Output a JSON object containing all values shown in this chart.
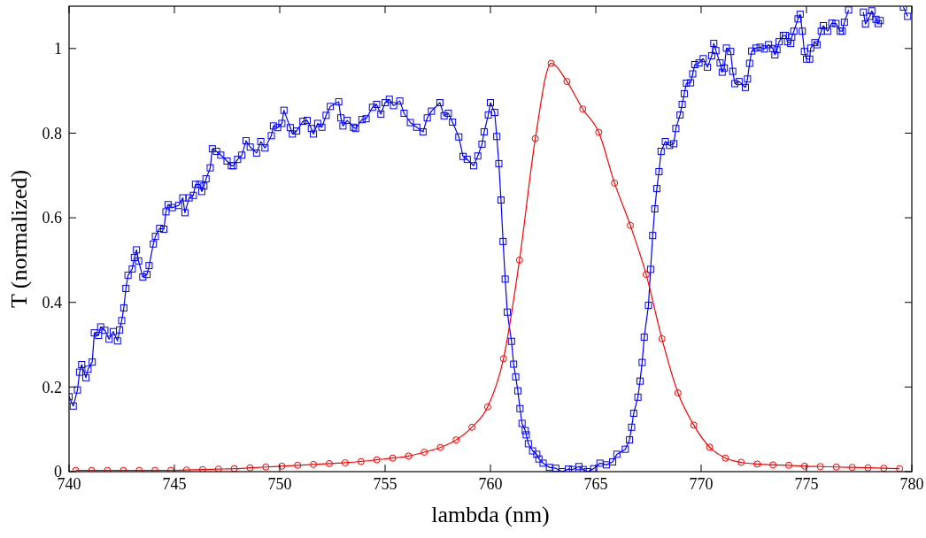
{
  "chart_data": {
    "type": "line",
    "xlabel": "lambda (nm)",
    "ylabel": "T (normalized)",
    "xlim": [
      740,
      780
    ],
    "xticks": [
      740,
      745,
      750,
      755,
      760,
      765,
      770,
      775,
      780
    ],
    "ylim": [
      0,
      1.1
    ],
    "yticks": [
      0,
      0.2,
      0.4,
      0.6,
      0.8,
      1
    ],
    "grid": false,
    "line_style": "solid",
    "series": [
      {
        "color": "#0000ff",
        "marker": "square",
        "x": [
          740.0,
          740.2,
          740.4,
          740.5,
          740.6,
          740.8,
          740.9,
          741.1,
          741.2,
          741.4,
          741.5,
          741.7,
          741.9,
          742.1,
          742.3,
          742.4,
          742.5,
          742.6,
          742.7,
          742.8,
          743.0,
          743.1,
          743.2,
          743.3,
          743.5,
          743.7,
          743.8,
          744.0,
          744.1,
          744.3,
          744.5,
          744.6,
          744.7,
          744.9,
          745.2,
          745.4,
          745.5,
          745.7,
          745.9,
          746.0,
          746.2,
          746.3,
          746.4,
          746.5,
          746.7,
          746.8,
          747.0,
          747.2,
          747.5,
          747.7,
          747.8,
          748.0,
          748.2,
          748.4,
          748.6,
          748.9,
          749.1,
          749.3,
          749.6,
          749.7,
          749.9,
          750.1,
          750.2,
          750.5,
          750.6,
          750.8,
          751.1,
          751.3,
          751.5,
          751.6,
          751.8,
          752.0,
          752.2,
          752.4,
          752.8,
          752.9,
          753.0,
          753.2,
          753.5,
          753.6,
          753.9,
          754.1,
          754.4,
          754.6,
          754.8,
          755.0,
          755.2,
          755.4,
          755.7,
          755.9,
          756.2,
          756.5,
          756.8,
          757.0,
          757.2,
          757.6,
          757.8,
          758.0,
          758.2,
          758.5,
          758.7,
          758.9,
          759.2,
          759.4,
          759.6,
          759.7,
          759.9,
          760.0,
          760.2,
          760.3,
          760.4,
          760.5,
          760.6,
          760.7,
          760.8,
          761.0,
          761.1,
          761.2,
          761.3,
          761.4,
          761.5,
          761.65,
          761.7,
          761.8,
          762.0,
          762.2,
          762.3,
          762.5,
          762.8,
          763.1,
          763.4,
          763.7,
          763.9,
          764.2,
          764.4,
          764.6,
          764.9,
          765.2,
          765.5,
          765.8,
          766.0,
          766.4,
          766.6,
          766.7,
          766.8,
          767.0,
          767.1,
          767.2,
          767.3,
          767.5,
          767.6,
          767.7,
          767.8,
          767.9,
          768.0,
          768.1,
          768.3,
          768.5,
          768.7,
          768.8,
          769.0,
          769.1,
          769.2,
          769.3,
          769.5,
          769.6,
          769.7,
          769.9,
          770.1,
          770.3,
          770.5,
          770.6,
          770.7,
          770.9,
          771.0,
          771.1,
          771.2,
          771.4,
          771.5,
          771.6,
          771.8,
          772.1,
          772.2,
          772.3,
          772.4,
          772.6,
          772.8,
          773.0,
          773.2,
          773.4,
          773.5,
          773.6,
          773.7,
          773.9,
          774.0,
          774.1,
          774.25,
          774.3,
          774.4,
          774.6,
          774.7,
          774.8,
          774.9,
          775.0,
          775.15,
          775.2,
          775.4,
          775.5,
          775.7,
          775.8,
          776.0,
          776.2,
          776.4,
          776.6,
          776.7,
          776.8,
          777.0,
          777.3,
          777.7,
          777.8,
          778.0,
          778.1,
          778.3,
          778.4,
          778.5,
          779.0,
          779.6,
          779.8
        ],
        "values": [
          0.177,
          0.155,
          0.193,
          0.235,
          0.253,
          0.222,
          0.242,
          0.259,
          0.328,
          0.322,
          0.342,
          0.334,
          0.313,
          0.331,
          0.309,
          0.335,
          0.357,
          0.387,
          0.433,
          0.464,
          0.479,
          0.506,
          0.524,
          0.498,
          0.46,
          0.466,
          0.487,
          0.538,
          0.556,
          0.575,
          0.573,
          0.614,
          0.631,
          0.624,
          0.629,
          0.647,
          0.612,
          0.647,
          0.653,
          0.679,
          0.679,
          0.662,
          0.675,
          0.692,
          0.718,
          0.763,
          0.757,
          0.748,
          0.734,
          0.723,
          0.723,
          0.738,
          0.748,
          0.782,
          0.767,
          0.753,
          0.78,
          0.765,
          0.794,
          0.817,
          0.813,
          0.823,
          0.854,
          0.813,
          0.798,
          0.805,
          0.828,
          0.83,
          0.811,
          0.798,
          0.823,
          0.814,
          0.842,
          0.863,
          0.874,
          0.836,
          0.817,
          0.83,
          0.814,
          0.811,
          0.832,
          0.834,
          0.861,
          0.868,
          0.845,
          0.872,
          0.88,
          0.865,
          0.876,
          0.847,
          0.825,
          0.814,
          0.803,
          0.836,
          0.852,
          0.872,
          0.841,
          0.847,
          0.826,
          0.791,
          0.745,
          0.738,
          0.723,
          0.746,
          0.774,
          0.803,
          0.843,
          0.872,
          0.849,
          0.792,
          0.728,
          0.642,
          0.544,
          0.455,
          0.377,
          0.308,
          0.254,
          0.224,
          0.191,
          0.149,
          0.114,
          0.097,
          0.087,
          0.066,
          0.049,
          0.041,
          0.03,
          0.02,
          0.01,
          0.008,
          0.0,
          0.006,
          0.005,
          0.012,
          0.005,
          0.0,
          0.007,
          0.02,
          0.016,
          0.023,
          0.041,
          0.053,
          0.075,
          0.105,
          0.138,
          0.176,
          0.214,
          0.258,
          0.318,
          0.393,
          0.478,
          0.558,
          0.621,
          0.669,
          0.709,
          0.757,
          0.78,
          0.771,
          0.775,
          0.811,
          0.843,
          0.868,
          0.893,
          0.918,
          0.919,
          0.94,
          0.962,
          0.966,
          0.976,
          0.956,
          0.983,
          1.012,
          0.995,
          0.966,
          0.944,
          0.954,
          1.001,
          0.993,
          0.946,
          0.917,
          0.922,
          0.908,
          0.928,
          0.965,
          0.994,
          1.001,
          1.003,
          0.999,
          1.009,
          1.0,
          0.985,
          0.997,
          1.016,
          1.031,
          1.031,
          1.016,
          1.012,
          1.027,
          1.041,
          1.07,
          1.081,
          1.041,
          0.993,
          0.975,
          0.975,
          1.001,
          1.014,
          1.009,
          1.041,
          1.054,
          1.041,
          1.06,
          1.059,
          1.041,
          1.041,
          1.062,
          1.091,
          null,
          1.086,
          1.058,
          1.076,
          1.089,
          1.069,
          1.059,
          1.066,
          null,
          1.098,
          1.076
        ]
      },
      {
        "color": "#ff0000",
        "marker": "circle",
        "x": [
          740.32,
          741.07,
          741.82,
          742.58,
          743.33,
          744.08,
          744.83,
          745.58,
          746.34,
          747.09,
          747.84,
          748.59,
          749.34,
          750.1,
          750.85,
          751.6,
          752.35,
          753.1,
          753.86,
          754.61,
          755.36,
          756.11,
          756.86,
          757.62,
          758.37,
          759.12,
          759.87,
          760.62,
          761.38,
          762.13,
          762.88,
          763.63,
          764.38,
          765.14,
          765.89,
          766.64,
          767.39,
          768.14,
          768.9,
          769.65,
          770.4,
          771.15,
          771.9,
          772.66,
          773.41,
          774.16,
          774.91,
          775.66,
          776.42,
          777.17,
          777.92,
          778.67,
          779.42
        ],
        "values": [
          0.003,
          0.003,
          0.003,
          0.003,
          0.003,
          0.003,
          0.003,
          0.004,
          0.005,
          0.006,
          0.007,
          0.009,
          0.011,
          0.013,
          0.015,
          0.017,
          0.019,
          0.021,
          0.024,
          0.028,
          0.032,
          0.037,
          0.046,
          0.057,
          0.075,
          0.105,
          0.153,
          0.267,
          0.5,
          0.787,
          0.965,
          0.922,
          0.857,
          0.802,
          0.682,
          0.582,
          0.466,
          0.314,
          0.186,
          0.11,
          0.058,
          0.032,
          0.022,
          0.018,
          0.016,
          0.015,
          0.013,
          0.012,
          0.011,
          0.01,
          0.009,
          0.008,
          0.007
        ]
      }
    ]
  }
}
